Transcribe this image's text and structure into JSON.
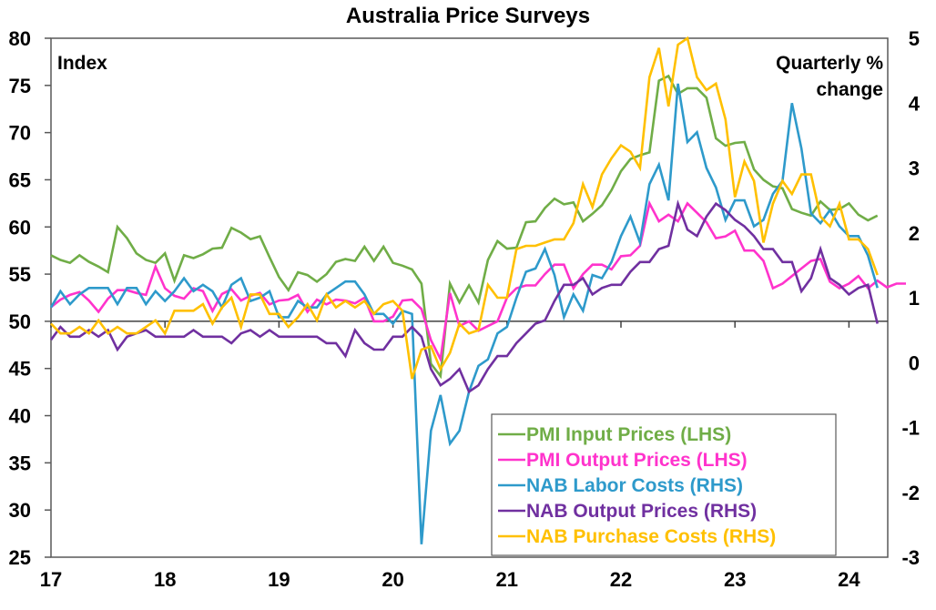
{
  "chart_data": {
    "type": "line",
    "title": "Australia Price Surveys",
    "xlabel": "",
    "ylabel_left": "Index",
    "ylabel_right": "Quarterly % change",
    "ylabel_right_lines": [
      "Quarterly %",
      "change"
    ],
    "x_start": "2017-01",
    "x_frequency": "monthly",
    "x_ticks": [
      "17",
      "18",
      "19",
      "20",
      "21",
      "22",
      "23",
      "24"
    ],
    "xlim": [
      2017.0,
      2024.33
    ],
    "ylim_left": [
      25,
      80
    ],
    "ylim_right": [
      -3,
      5
    ],
    "y_ticks_left": [
      "25",
      "30",
      "35",
      "40",
      "45",
      "50",
      "55",
      "60",
      "65",
      "70",
      "75",
      "80"
    ],
    "y_ticks_right": [
      "-3",
      "-2",
      "-1",
      "0",
      "1",
      "2",
      "3",
      "4",
      "5"
    ],
    "reference_line_left": 50,
    "grid": false,
    "legend_position": "bottom-right",
    "series": [
      {
        "name": "PMI Input Prices (LHS)",
        "axis": "left",
        "color": "#70AD47",
        "values": [
          57.0,
          56.5,
          56.2,
          57.0,
          56.3,
          55.8,
          55.2,
          60.0,
          58.8,
          57.2,
          56.5,
          56.2,
          57.2,
          54.3,
          57.0,
          56.7,
          57.1,
          57.7,
          57.8,
          59.9,
          59.4,
          58.7,
          59.0,
          56.8,
          54.7,
          53.3,
          55.2,
          54.9,
          54.2,
          55.0,
          56.3,
          56.6,
          56.4,
          57.9,
          56.4,
          57.9,
          56.2,
          55.9,
          55.5,
          54.0,
          45.5,
          44.2,
          54.0,
          52.0,
          53.8,
          52.0,
          56.5,
          58.5,
          57.7,
          57.8,
          60.5,
          60.6,
          62.0,
          63.0,
          62.4,
          62.6,
          60.6,
          61.4,
          62.3,
          63.9,
          65.9,
          67.2,
          67.6,
          67.9,
          75.5,
          76.0,
          74.1,
          74.7,
          74.7,
          73.7,
          69.4,
          68.6,
          68.9,
          69.0,
          66.1,
          65.0,
          64.3,
          64.1,
          61.9,
          61.5,
          61.2,
          62.7,
          61.8,
          61.9,
          62.5,
          61.3,
          60.7,
          61.2
        ]
      },
      {
        "name": "PMI Output Prices (LHS)",
        "axis": "left",
        "color": "#FF33CC",
        "values": [
          51.5,
          52.3,
          52.8,
          53.1,
          52.2,
          51.0,
          52.4,
          53.3,
          53.3,
          53.0,
          52.8,
          55.8,
          53.5,
          52.7,
          52.4,
          53.5,
          53.2,
          51.1,
          52.9,
          53.4,
          52.2,
          52.7,
          53.0,
          51.8,
          52.2,
          52.3,
          52.8,
          51.0,
          52.3,
          51.8,
          52.3,
          52.2,
          51.9,
          52.5,
          50.0,
          50.0,
          50.5,
          52.2,
          52.3,
          51.3,
          48.0,
          46.0,
          53.0,
          49.5,
          50.0,
          49.0,
          49.5,
          50.0,
          52.5,
          53.5,
          53.8,
          53.8,
          55.0,
          56.0,
          56.0,
          53.5,
          55.0,
          56.0,
          56.0,
          55.5,
          56.9,
          57.0,
          58.0,
          62.5,
          60.6,
          61.3,
          60.6,
          62.5,
          61.5,
          60.5,
          58.8,
          59.0,
          59.6,
          57.5,
          57.5,
          56.4,
          53.5,
          54.0,
          54.8,
          55.6,
          56.4,
          56.6,
          54.2,
          53.5,
          54.0,
          54.8,
          53.5,
          54.3,
          53.6,
          54.0,
          54.0
        ]
      },
      {
        "name": "NAB Labor Costs (RHS)",
        "axis": "right",
        "color": "#2E9ACB",
        "values": [
          0.85,
          1.1,
          0.9,
          1.05,
          1.15,
          1.15,
          1.15,
          0.9,
          1.15,
          1.15,
          0.9,
          1.1,
          0.95,
          1.1,
          1.3,
          1.1,
          1.2,
          1.1,
          0.85,
          1.2,
          1.3,
          0.95,
          1.0,
          1.1,
          0.7,
          0.7,
          0.95,
          0.85,
          0.85,
          1.05,
          1.15,
          1.25,
          1.25,
          1.05,
          0.75,
          0.75,
          0.6,
          0.8,
          0.75,
          -2.8,
          -1.05,
          -0.5,
          -1.25,
          -1.05,
          -0.45,
          -0.05,
          0.05,
          0.45,
          0.55,
          1.0,
          1.4,
          1.45,
          1.75,
          1.35,
          0.7,
          1.05,
          0.8,
          1.35,
          1.3,
          1.55,
          1.95,
          2.25,
          1.85,
          2.75,
          3.05,
          2.5,
          4.3,
          3.4,
          3.55,
          3.0,
          2.7,
          2.2,
          2.5,
          2.5,
          2.1,
          2.2,
          2.6,
          2.8,
          4.0,
          3.3,
          2.3,
          2.15,
          2.35,
          2.1,
          1.95,
          1.95,
          1.65,
          1.15
        ]
      },
      {
        "name": "NAB Output Prices (RHS)",
        "axis": "right",
        "color": "#7030A0",
        "values": [
          0.35,
          0.55,
          0.4,
          0.4,
          0.5,
          0.4,
          0.5,
          0.2,
          0.4,
          0.45,
          0.5,
          0.4,
          0.4,
          0.4,
          0.4,
          0.5,
          0.4,
          0.4,
          0.4,
          0.3,
          0.45,
          0.5,
          0.4,
          0.5,
          0.4,
          0.4,
          0.4,
          0.4,
          0.4,
          0.3,
          0.3,
          0.1,
          0.5,
          0.3,
          0.2,
          0.2,
          0.4,
          0.4,
          0.55,
          0.4,
          -0.1,
          -0.35,
          -0.25,
          -0.1,
          -0.45,
          -0.35,
          -0.1,
          0.1,
          0.1,
          0.3,
          0.45,
          0.6,
          0.65,
          0.95,
          1.2,
          1.2,
          1.3,
          1.05,
          1.15,
          1.2,
          1.2,
          1.4,
          1.55,
          1.55,
          1.75,
          1.8,
          2.45,
          2.05,
          1.95,
          2.25,
          2.45,
          2.35,
          2.2,
          2.1,
          1.95,
          1.75,
          1.75,
          1.55,
          1.55,
          1.1,
          1.3,
          1.75,
          1.3,
          1.2,
          1.05,
          1.15,
          1.2,
          0.6
        ]
      },
      {
        "name": "NAB Purchase Costs (RHS)",
        "axis": "right",
        "color": "#FFC000",
        "values": [
          0.6,
          0.45,
          0.45,
          0.55,
          0.45,
          0.65,
          0.45,
          0.55,
          0.45,
          0.45,
          0.55,
          0.65,
          0.45,
          0.8,
          0.8,
          0.8,
          0.9,
          0.6,
          0.85,
          1.0,
          0.55,
          1.05,
          1.05,
          0.75,
          0.75,
          0.55,
          0.7,
          0.9,
          0.65,
          1.05,
          0.85,
          0.95,
          0.85,
          0.95,
          0.75,
          0.9,
          0.95,
          0.8,
          -0.25,
          0.2,
          0.25,
          -0.1,
          0.15,
          0.6,
          0.45,
          0.5,
          1.2,
          1.0,
          1.0,
          1.75,
          1.8,
          1.8,
          1.85,
          1.9,
          1.9,
          2.15,
          2.75,
          2.4,
          2.9,
          3.15,
          3.35,
          3.25,
          3.0,
          4.4,
          4.85,
          3.95,
          4.9,
          5.1,
          4.4,
          4.2,
          4.3,
          3.75,
          2.55,
          3.1,
          2.8,
          1.85,
          2.45,
          2.8,
          2.6,
          2.9,
          2.9,
          2.25,
          2.1,
          2.45,
          1.9,
          1.9,
          1.75,
          1.35
        ]
      }
    ]
  }
}
